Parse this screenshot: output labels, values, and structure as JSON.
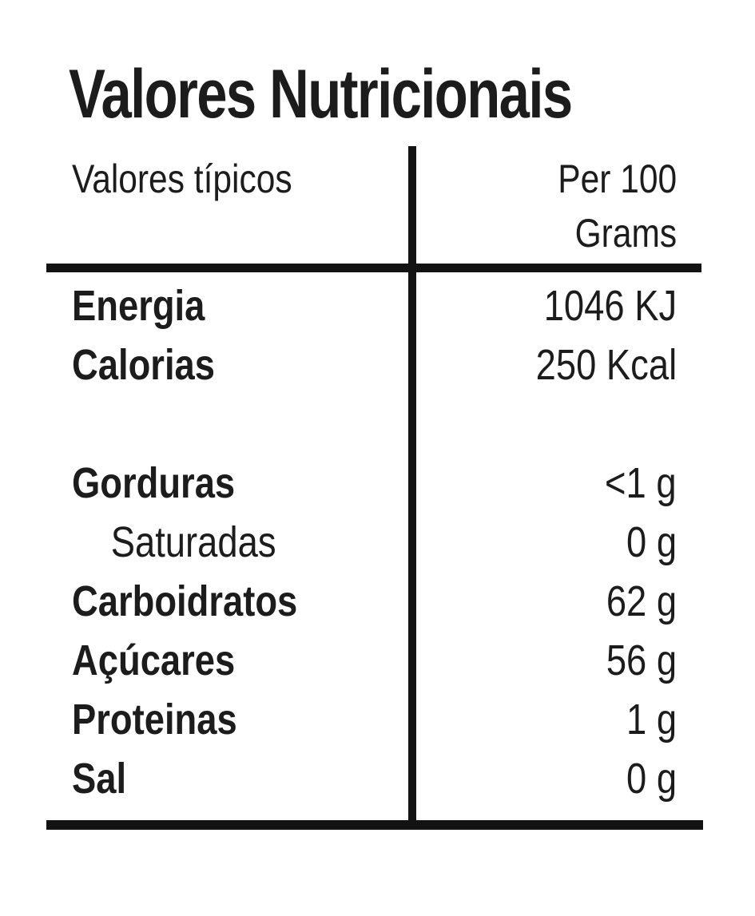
{
  "label": {
    "title": "Valores Nutricionais",
    "header": {
      "left_column": "Valores típicos",
      "right_column_line1": "Per 100",
      "right_column_line2": "Grams"
    },
    "rows": [
      {
        "name": "Energia",
        "value": "1046 KJ",
        "bold": true,
        "indent": false,
        "spacer": false
      },
      {
        "name": "Calorias",
        "value": "250 Kcal",
        "bold": true,
        "indent": false,
        "spacer": false
      },
      {
        "name": "",
        "value": "",
        "bold": false,
        "indent": false,
        "spacer": true
      },
      {
        "name": "Gorduras",
        "value": "<1 g",
        "bold": true,
        "indent": false,
        "spacer": false
      },
      {
        "name": "Saturadas",
        "value": "0 g",
        "bold": false,
        "indent": true,
        "spacer": false
      },
      {
        "name": "Carboidratos",
        "value": "62 g",
        "bold": true,
        "indent": false,
        "spacer": false
      },
      {
        "name": "Açúcares",
        "value": "56 g",
        "bold": true,
        "indent": false,
        "spacer": false
      },
      {
        "name": "Proteinas",
        "value": "1 g",
        "bold": true,
        "indent": false,
        "spacer": false
      },
      {
        "name": "Sal",
        "value": "0 g",
        "bold": true,
        "indent": false,
        "spacer": false
      }
    ],
    "colors": {
      "text": "#1c1c1c",
      "rule": "#131313",
      "background": "#ffffff"
    }
  }
}
